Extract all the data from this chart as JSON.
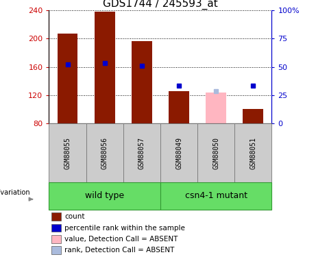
{
  "title": "GDS1744 / 245593_at",
  "samples": [
    "GSM88055",
    "GSM88056",
    "GSM88057",
    "GSM88049",
    "GSM88050",
    "GSM88051"
  ],
  "bar_values": [
    207,
    238,
    196,
    126,
    null,
    100
  ],
  "bar_absent_values": [
    null,
    null,
    null,
    null,
    124,
    null
  ],
  "rank_values": [
    163,
    165,
    161,
    133,
    null,
    133
  ],
  "rank_absent_values": [
    null,
    null,
    null,
    null,
    126,
    null
  ],
  "bar_color": "#8B1A00",
  "bar_absent_color": "#FFB6C1",
  "rank_color": "#0000CD",
  "rank_absent_color": "#AABBDD",
  "ylim": [
    80,
    240
  ],
  "y2lim": [
    0,
    100
  ],
  "yticks": [
    80,
    120,
    160,
    200,
    240
  ],
  "y2ticks": [
    0,
    25,
    50,
    75,
    100
  ],
  "y2ticklabels": [
    "0",
    "25",
    "50",
    "75",
    "100%"
  ],
  "bar_width": 0.55,
  "legend_items": [
    {
      "label": "count",
      "color": "#8B1A00"
    },
    {
      "label": "percentile rank within the sample",
      "color": "#0000CD"
    },
    {
      "label": "value, Detection Call = ABSENT",
      "color": "#FFB6C1"
    },
    {
      "label": "rank, Detection Call = ABSENT",
      "color": "#AABBDD"
    }
  ],
  "fig_width": 4.61,
  "fig_height": 3.75,
  "title_fontsize": 11,
  "axis_fontsize": 8,
  "sample_fontsize": 7,
  "legend_fontsize": 7.5,
  "group_fontsize": 9,
  "label_color_left": "#CC0000",
  "label_color_right": "#0000CC",
  "grid_color": "black",
  "sample_bg": "#CCCCCC",
  "group_bg": "#66DD66"
}
